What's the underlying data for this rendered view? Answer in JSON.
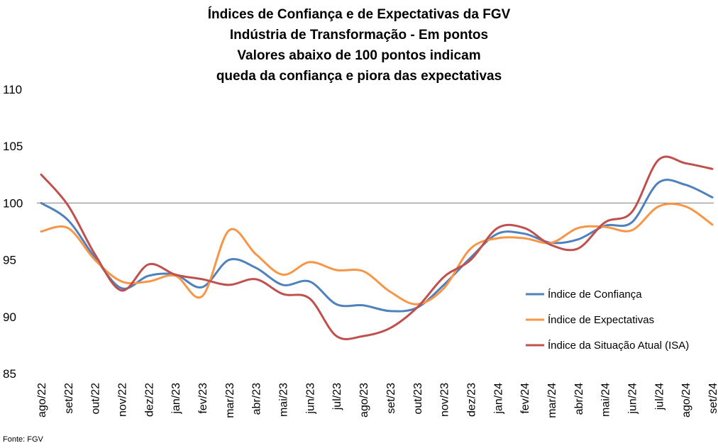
{
  "chart_data": {
    "type": "line",
    "title_lines": [
      "Índices de Confiança e de Expectativas da FGV",
      "Indústria de Transformação - Em pontos",
      "Valores abaixo de 100 pontos indicam",
      "queda da confiança e piora das expectativas"
    ],
    "categories": [
      "ago/22",
      "set/22",
      "out/22",
      "nov/22",
      "dez/22",
      "jan/23",
      "fev/23",
      "mar/23",
      "abr/23",
      "mai/23",
      "jun/23",
      "jul/23",
      "ago/23",
      "set/23",
      "out/23",
      "nov/23",
      "dez/23",
      "jan/24",
      "fev/24",
      "mar/24",
      "abr/24",
      "mai/24",
      "jun/24",
      "jul/24",
      "ago/24",
      "set/24"
    ],
    "yticks": [
      85,
      90,
      95,
      100,
      105,
      110
    ],
    "ylim": [
      85,
      110
    ],
    "reference_line": 100,
    "series": [
      {
        "name": "Índice de Confiança",
        "color": "#4F81BD",
        "values": [
          100.0,
          98.5,
          95.2,
          92.5,
          93.6,
          93.7,
          92.6,
          95.0,
          94.3,
          92.8,
          93.1,
          91.1,
          91.0,
          90.5,
          90.8,
          92.8,
          95.2,
          97.3,
          97.3,
          96.5,
          96.8,
          98.0,
          98.3,
          101.8,
          101.6,
          100.5
        ]
      },
      {
        "name": "Índice de Expectativas",
        "color": "#F79646",
        "values": [
          97.5,
          97.8,
          95.0,
          93.1,
          93.1,
          93.6,
          91.8,
          97.6,
          95.5,
          93.7,
          94.8,
          94.1,
          94.0,
          92.2,
          91.1,
          92.5,
          96.0,
          96.9,
          96.9,
          96.5,
          97.8,
          97.9,
          97.6,
          99.7,
          99.7,
          98.1
        ]
      },
      {
        "name": "Índice da Situação Atual (ISA)",
        "color": "#C0504D",
        "values": [
          102.5,
          99.8,
          95.5,
          92.3,
          94.6,
          93.7,
          93.3,
          92.8,
          93.3,
          92.0,
          91.6,
          88.3,
          88.3,
          89.0,
          90.8,
          93.5,
          95.0,
          97.8,
          97.8,
          96.3,
          96.0,
          98.3,
          99.2,
          103.8,
          103.5,
          103.0
        ]
      }
    ]
  },
  "source": "Fonte: FGV"
}
